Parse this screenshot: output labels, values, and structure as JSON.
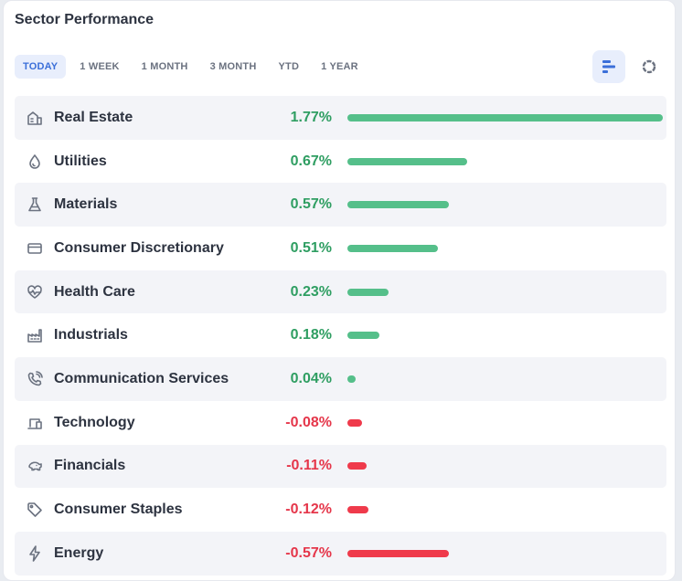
{
  "widget": {
    "title": "Sector Performance"
  },
  "tabs": [
    {
      "label": "TODAY",
      "active": true
    },
    {
      "label": "1 WEEK",
      "active": false
    },
    {
      "label": "1 MONTH",
      "active": false
    },
    {
      "label": "3 MONTH",
      "active": false
    },
    {
      "label": "YTD",
      "active": false
    },
    {
      "label": "1 YEAR",
      "active": false
    }
  ],
  "view_toggle": {
    "bar_icon": "bar-chart-icon",
    "donut_icon": "donut-chart-icon",
    "selected": "bar"
  },
  "colors": {
    "positive": "#55bf8a",
    "positive_text": "#2f9e62",
    "negative": "#ef3a4b",
    "negative_text": "#e5364a",
    "accent": "#3b6fd9"
  },
  "sectors": [
    {
      "name": "Real Estate",
      "change": "1.77%",
      "value": 1.77,
      "icon": "building-icon"
    },
    {
      "name": "Utilities",
      "change": "0.67%",
      "value": 0.67,
      "icon": "drop-icon"
    },
    {
      "name": "Materials",
      "change": "0.57%",
      "value": 0.57,
      "icon": "flask-icon"
    },
    {
      "name": "Consumer Discretionary",
      "change": "0.51%",
      "value": 0.51,
      "icon": "credit-card-icon"
    },
    {
      "name": "Health Care",
      "change": "0.23%",
      "value": 0.23,
      "icon": "heart-pulse-icon"
    },
    {
      "name": "Industrials",
      "change": "0.18%",
      "value": 0.18,
      "icon": "factory-icon"
    },
    {
      "name": "Communication Services",
      "change": "0.04%",
      "value": 0.04,
      "icon": "phone-icon"
    },
    {
      "name": "Technology",
      "change": "-0.08%",
      "value": -0.08,
      "icon": "devices-icon"
    },
    {
      "name": "Financials",
      "change": "-0.11%",
      "value": -0.11,
      "icon": "piggy-bank-icon"
    },
    {
      "name": "Consumer Staples",
      "change": "-0.12%",
      "value": -0.12,
      "icon": "tag-icon"
    },
    {
      "name": "Energy",
      "change": "-0.57%",
      "value": -0.57,
      "icon": "lightning-icon"
    }
  ]
}
